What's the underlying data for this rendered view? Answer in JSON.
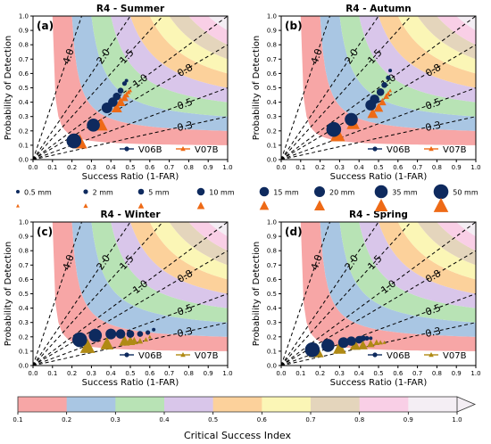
{
  "figure": {
    "colors": {
      "csi_bands": [
        "#f7a6a6",
        "#a9c6e3",
        "#b8e3b5",
        "#d9c6ea",
        "#fcd19b",
        "#fbf6b6",
        "#e4d5bc",
        "#f9cfe6",
        "#f4eef4"
      ],
      "v06b": "#0e2a5e",
      "v07b_summer": "#ee6a16",
      "v07b_winter": "#b08a14"
    },
    "axis_ticks": [
      "0.0",
      "0.1",
      "0.2",
      "0.3",
      "0.4",
      "0.5",
      "0.6",
      "0.7",
      "0.8",
      "0.9",
      "1.0"
    ],
    "size_legend": {
      "labels": [
        "0.5 mm",
        "2 mm",
        "5 mm",
        "10 mm",
        "15 mm",
        "20 mm",
        "35 mm",
        "50 mm"
      ]
    },
    "colorbar": {
      "label": "Critical Success Index",
      "ticks": [
        "0.1",
        "0.2",
        "0.3",
        "0.4",
        "0.5",
        "0.6",
        "0.7",
        "0.8",
        "0.9",
        "1.0"
      ]
    }
  },
  "chart_data": [
    {
      "type": "scatter",
      "panel_label": "(a)",
      "title": "R4 - Summer",
      "xlabel": "Success Ratio (1-FAR)",
      "ylabel": "Probability of Detection",
      "xlim": [
        0,
        1
      ],
      "ylim": [
        0,
        1
      ],
      "bias_lines": [
        0.3,
        0.5,
        0.8,
        1.0,
        1.5,
        2.0,
        4.0
      ],
      "bias_labels": [
        "0.3",
        "0.5",
        "0.8",
        "1.0",
        "1.5",
        "2.0",
        "4.0"
      ],
      "series": [
        {
          "name": "V06B",
          "marker": "circle",
          "x": [
            0.48,
            0.47,
            0.45,
            0.43,
            0.41,
            0.38,
            0.31,
            0.21
          ],
          "y": [
            0.55,
            0.53,
            0.48,
            0.44,
            0.4,
            0.36,
            0.24,
            0.13
          ]
        },
        {
          "name": "V07B",
          "marker": "triangle",
          "x": [
            0.5,
            0.49,
            0.48,
            0.47,
            0.45,
            0.43,
            0.35,
            0.24
          ],
          "y": [
            0.48,
            0.47,
            0.45,
            0.43,
            0.4,
            0.36,
            0.24,
            0.12
          ]
        }
      ]
    },
    {
      "type": "scatter",
      "panel_label": "(b)",
      "title": "R4 - Autumn",
      "xlabel": "Success Ratio (1-FAR)",
      "ylabel": "Probability of Detection",
      "xlim": [
        0,
        1
      ],
      "ylim": [
        0,
        1
      ],
      "bias_lines": [
        0.3,
        0.5,
        0.8,
        1.0,
        1.5,
        2.0,
        4.0
      ],
      "bias_labels": [
        "0.3",
        "0.5",
        "0.8",
        "1.0",
        "1.5",
        "2.0",
        "4.0"
      ],
      "series": [
        {
          "name": "V06B",
          "marker": "circle",
          "x": [
            0.56,
            0.55,
            0.53,
            0.51,
            0.48,
            0.46,
            0.36,
            0.27
          ],
          "y": [
            0.62,
            0.57,
            0.52,
            0.47,
            0.42,
            0.38,
            0.28,
            0.21
          ]
        },
        {
          "name": "V07B",
          "marker": "triangle",
          "x": [
            0.56,
            0.55,
            0.54,
            0.52,
            0.5,
            0.47,
            0.37,
            0.29
          ],
          "y": [
            0.48,
            0.46,
            0.44,
            0.4,
            0.36,
            0.32,
            0.25,
            0.17
          ]
        }
      ]
    },
    {
      "type": "scatter",
      "panel_label": "(c)",
      "title": "R4 - Winter",
      "xlabel": "Success Ratio (1-FAR)",
      "ylabel": "Probability of Detection",
      "xlim": [
        0,
        1
      ],
      "ylim": [
        0,
        1
      ],
      "bias_lines": [
        0.3,
        0.5,
        0.8,
        1.0,
        1.5,
        2.0,
        4.0
      ],
      "bias_labels": [
        "0.3",
        "0.5",
        "0.8",
        "1.0",
        "1.5",
        "2.0",
        "4.0"
      ],
      "series": [
        {
          "name": "V06B",
          "marker": "circle",
          "x": [
            0.62,
            0.59,
            0.55,
            0.5,
            0.45,
            0.4,
            0.32,
            0.24
          ],
          "y": [
            0.25,
            0.23,
            0.22,
            0.22,
            0.22,
            0.22,
            0.21,
            0.18
          ]
        },
        {
          "name": "V07B",
          "marker": "triangle",
          "x": [
            0.6,
            0.58,
            0.55,
            0.52,
            0.5,
            0.47,
            0.38,
            0.28
          ],
          "y": [
            0.2,
            0.18,
            0.17,
            0.17,
            0.17,
            0.17,
            0.15,
            0.13
          ]
        }
      ]
    },
    {
      "type": "scatter",
      "panel_label": "(d)",
      "title": "R4 - Spring",
      "xlabel": "Success Ratio (1-FAR)",
      "ylabel": "Probability of Detection",
      "xlim": [
        0,
        1
      ],
      "ylim": [
        0,
        1
      ],
      "bias_lines": [
        0.3,
        0.5,
        0.8,
        1.0,
        1.5,
        2.0,
        4.0
      ],
      "bias_labels": [
        "0.3",
        "0.5",
        "0.8",
        "1.0",
        "1.5",
        "2.0",
        "4.0"
      ],
      "series": [
        {
          "name": "V06B",
          "marker": "circle",
          "x": [
            0.46,
            0.44,
            0.42,
            0.4,
            0.36,
            0.32,
            0.24,
            0.16
          ],
          "y": [
            0.19,
            0.19,
            0.19,
            0.18,
            0.17,
            0.16,
            0.14,
            0.11
          ]
        },
        {
          "name": "V07B",
          "marker": "triangle",
          "x": [
            0.53,
            0.51,
            0.49,
            0.46,
            0.42,
            0.38,
            0.3,
            0.18
          ],
          "y": [
            0.16,
            0.16,
            0.16,
            0.15,
            0.14,
            0.14,
            0.12,
            0.1
          ]
        }
      ]
    }
  ]
}
